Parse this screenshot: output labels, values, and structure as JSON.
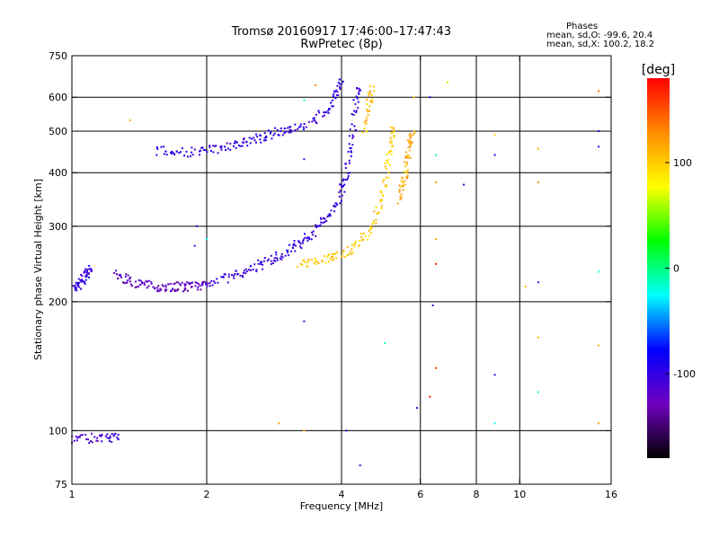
{
  "chart_data": {
    "type": "scatter",
    "title": "Tromsø 20160917 17:46:00–17:47:43",
    "subtitle": "RwPretec (8p)",
    "xlabel": "Frequency [MHz]",
    "ylabel": "Stationary phase Virtual Height [km]",
    "x_scale": "log",
    "y_scale": "log",
    "xlim": [
      1,
      16
    ],
    "ylim": [
      75,
      750
    ],
    "x_ticks": [
      1,
      2,
      4,
      6,
      8,
      10,
      16
    ],
    "x_tick_labels": [
      "1",
      "2",
      "4",
      "6",
      "8",
      "10",
      "16"
    ],
    "y_ticks": [
      75,
      100,
      200,
      300,
      400,
      500,
      600,
      750
    ],
    "y_tick_labels": [
      "75",
      "100",
      "200",
      "300",
      "400",
      "500",
      "600",
      "750"
    ],
    "grid": true,
    "phase_stats": {
      "title": "Phases",
      "o_mode": "mean, sd,O: -99.6, 20.4",
      "x_mode": "mean, sd,X: 100.2, 18.2"
    },
    "colorbar": {
      "label": "[deg]",
      "range": [
        -180,
        180
      ],
      "ticks": [
        100,
        0,
        -100
      ],
      "tick_labels": [
        "100",
        "0",
        "-100"
      ],
      "colors": [
        "#ff0000",
        "#ff8c00",
        "#ffff00",
        "#00ff00",
        "#00ffff",
        "#0000ff",
        "#7000c0",
        "#000000"
      ]
    },
    "traces": [
      {
        "phase": -100,
        "points": [
          [
            1.0,
            215
          ],
          [
            1.03,
            218
          ],
          [
            1.06,
            225
          ],
          [
            1.08,
            232
          ],
          [
            1.1,
            237
          ]
        ]
      },
      {
        "phase": -125,
        "points": [
          [
            1.25,
            232
          ],
          [
            1.32,
            226
          ],
          [
            1.4,
            221
          ],
          [
            1.5,
            218
          ],
          [
            1.6,
            216
          ],
          [
            1.7,
            217
          ],
          [
            1.8,
            216
          ],
          [
            1.9,
            218
          ],
          [
            2.0,
            220
          ]
        ]
      },
      {
        "phase": -100,
        "points": [
          [
            2.0,
            221
          ],
          [
            2.2,
            227
          ],
          [
            2.4,
            233
          ],
          [
            2.6,
            242
          ],
          [
            2.8,
            251
          ],
          [
            3.0,
            260
          ],
          [
            3.2,
            272
          ],
          [
            3.4,
            285
          ],
          [
            3.6,
            305
          ],
          [
            3.8,
            325
          ],
          [
            4.0,
            360
          ],
          [
            4.1,
            400
          ],
          [
            4.2,
            470
          ],
          [
            4.3,
            560
          ],
          [
            4.4,
            650
          ]
        ]
      },
      {
        "phase": -100,
        "points": [
          [
            1.55,
            450
          ],
          [
            1.7,
            447
          ],
          [
            1.9,
            447
          ],
          [
            2.1,
            455
          ],
          [
            2.3,
            465
          ],
          [
            2.5,
            475
          ],
          [
            2.7,
            487
          ],
          [
            2.9,
            497
          ],
          [
            3.1,
            508
          ],
          [
            3.4,
            520
          ],
          [
            3.7,
            560
          ],
          [
            3.9,
            610
          ],
          [
            4.0,
            660
          ]
        ]
      },
      {
        "phase": 100,
        "points": [
          [
            3.2,
            245
          ],
          [
            3.5,
            247
          ],
          [
            3.8,
            255
          ],
          [
            4.1,
            262
          ],
          [
            4.4,
            275
          ],
          [
            4.7,
            300
          ],
          [
            4.9,
            340
          ],
          [
            5.05,
            400
          ],
          [
            5.15,
            460
          ],
          [
            5.2,
            520
          ]
        ]
      },
      {
        "phase": 110,
        "points": [
          [
            4.5,
            500
          ],
          [
            4.6,
            580
          ],
          [
            4.7,
            640
          ]
        ]
      },
      {
        "phase": 115,
        "points": [
          [
            5.4,
            345
          ],
          [
            5.5,
            380
          ],
          [
            5.6,
            420
          ],
          [
            5.7,
            470
          ],
          [
            5.75,
            500
          ]
        ]
      },
      {
        "phase": -110,
        "points": [
          [
            1.0,
            96
          ],
          [
            1.1,
            96
          ],
          [
            1.2,
            96
          ],
          [
            1.28,
            97
          ]
        ]
      }
    ],
    "scatter_points": [
      {
        "x": 1.35,
        "y": 530,
        "phase": 110
      },
      {
        "x": 3.3,
        "y": 180,
        "phase": -110
      },
      {
        "x": 3.3,
        "y": 100,
        "phase": 110
      },
      {
        "x": 2.9,
        "y": 104,
        "phase": 120
      },
      {
        "x": 6.4,
        "y": 196,
        "phase": -110
      },
      {
        "x": 6.5,
        "y": 140,
        "phase": 160
      },
      {
        "x": 6.3,
        "y": 120,
        "phase": 170
      },
      {
        "x": 5.9,
        "y": 113,
        "phase": -100
      },
      {
        "x": 4.4,
        "y": 83,
        "phase": -110
      },
      {
        "x": 5.0,
        "y": 160,
        "phase": -10
      },
      {
        "x": 8.8,
        "y": 135,
        "phase": -100
      },
      {
        "x": 8.8,
        "y": 104,
        "phase": -20
      },
      {
        "x": 11.0,
        "y": 165,
        "phase": 110
      },
      {
        "x": 11.0,
        "y": 123,
        "phase": -20
      },
      {
        "x": 15.0,
        "y": 158,
        "phase": 110
      },
      {
        "x": 15.0,
        "y": 104,
        "phase": 120
      },
      {
        "x": 15.0,
        "y": 235,
        "phase": -20
      },
      {
        "x": 11.0,
        "y": 222,
        "phase": -110
      },
      {
        "x": 10.3,
        "y": 217,
        "phase": 110
      },
      {
        "x": 6.5,
        "y": 280,
        "phase": 120
      },
      {
        "x": 6.5,
        "y": 245,
        "phase": 170
      },
      {
        "x": 6.5,
        "y": 380,
        "phase": 130
      },
      {
        "x": 6.5,
        "y": 440,
        "phase": -10
      },
      {
        "x": 6.3,
        "y": 600,
        "phase": -100
      },
      {
        "x": 6.9,
        "y": 650,
        "phase": 60
      },
      {
        "x": 7.5,
        "y": 375,
        "phase": -110
      },
      {
        "x": 8.8,
        "y": 440,
        "phase": -100
      },
      {
        "x": 8.8,
        "y": 490,
        "phase": 100
      },
      {
        "x": 11.0,
        "y": 455,
        "phase": 110
      },
      {
        "x": 11.0,
        "y": 380,
        "phase": 130
      },
      {
        "x": 15.0,
        "y": 500,
        "phase": -100
      },
      {
        "x": 15.0,
        "y": 460,
        "phase": -110
      },
      {
        "x": 15.0,
        "y": 620,
        "phase": 140
      },
      {
        "x": 1.9,
        "y": 300,
        "phase": -100
      },
      {
        "x": 1.88,
        "y": 270,
        "phase": -110
      },
      {
        "x": 2.0,
        "y": 280,
        "phase": -20
      },
      {
        "x": 3.3,
        "y": 590,
        "phase": -20
      },
      {
        "x": 3.3,
        "y": 430,
        "phase": -100
      },
      {
        "x": 3.5,
        "y": 640,
        "phase": 130
      },
      {
        "x": 5.8,
        "y": 600,
        "phase": 100
      },
      {
        "x": 4.1,
        "y": 100,
        "phase": -110
      }
    ]
  }
}
